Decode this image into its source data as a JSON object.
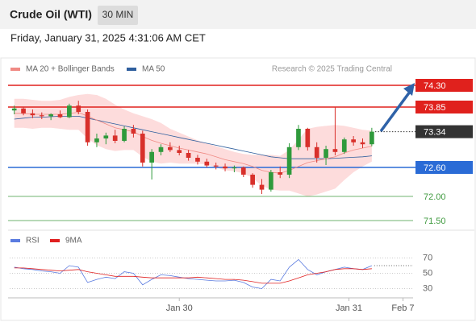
{
  "header": {
    "title": "Crude Oil (WTI)",
    "interval": "30 MIN",
    "timestamp": "Friday, January 31, 2025 4:31:06 AM CET"
  },
  "chart_data": [
    {
      "type": "candlestick",
      "legend": [
        {
          "name": "MA 20 + Bollinger Bands",
          "color": "#f08a84"
        },
        {
          "name": "MA 50",
          "color": "#2f5f9e"
        }
      ],
      "credit": "Research © 2025 Trading Central",
      "xlim": [
        -0.5,
        43.5
      ],
      "ylim": [
        71.3,
        74.5
      ],
      "xticks": [
        {
          "value": 18,
          "label": "Jan 30"
        },
        {
          "value": 36.5,
          "label": "Jan 31"
        },
        {
          "value": 42.4,
          "label": "Feb 7"
        }
      ],
      "up_color": "#2f9a3c",
      "down_color": "#d8302b",
      "band_color": "#fddcdc",
      "candles": [
        [
          73.78,
          73.88,
          73.7,
          73.82
        ],
        [
          73.82,
          73.86,
          73.68,
          73.72
        ],
        [
          73.72,
          73.8,
          73.62,
          73.68
        ],
        [
          73.68,
          73.74,
          73.6,
          73.66
        ],
        [
          73.66,
          73.72,
          73.58,
          73.7
        ],
        [
          73.7,
          73.78,
          73.62,
          73.64
        ],
        [
          73.64,
          73.92,
          73.62,
          73.88
        ],
        [
          73.88,
          73.98,
          73.7,
          73.75
        ],
        [
          73.75,
          73.8,
          73.05,
          73.12
        ],
        [
          73.12,
          73.3,
          73.02,
          73.2
        ],
        [
          73.2,
          73.32,
          73.08,
          73.26
        ],
        [
          73.26,
          73.38,
          73.1,
          73.15
        ],
        [
          73.15,
          73.45,
          73.12,
          73.4
        ],
        [
          73.4,
          73.48,
          73.22,
          73.3
        ],
        [
          73.3,
          73.36,
          72.62,
          72.7
        ],
        [
          72.7,
          72.98,
          72.35,
          72.92
        ],
        [
          72.92,
          73.08,
          72.85,
          73.02
        ],
        [
          73.02,
          73.12,
          72.92,
          72.96
        ],
        [
          72.96,
          73.05,
          72.85,
          72.9
        ],
        [
          72.9,
          72.96,
          72.74,
          72.8
        ],
        [
          72.8,
          72.86,
          72.66,
          72.72
        ],
        [
          72.72,
          72.78,
          72.6,
          72.64
        ],
        [
          72.64,
          72.7,
          72.56,
          72.62
        ],
        [
          72.62,
          72.68,
          72.52,
          72.58
        ],
        [
          72.58,
          72.64,
          72.5,
          72.6
        ],
        [
          72.6,
          72.62,
          72.4,
          72.45
        ],
        [
          72.45,
          72.48,
          72.18,
          72.24
        ],
        [
          72.24,
          72.36,
          72.05,
          72.14
        ],
        [
          72.14,
          72.55,
          72.1,
          72.5
        ],
        [
          72.5,
          72.62,
          72.38,
          72.45
        ],
        [
          72.45,
          73.1,
          72.38,
          73.02
        ],
        [
          73.02,
          73.48,
          72.96,
          73.4
        ],
        [
          73.4,
          73.42,
          72.95,
          73.02
        ],
        [
          73.02,
          73.12,
          72.7,
          72.8
        ],
        [
          72.8,
          73.05,
          72.65,
          72.98
        ],
        [
          72.98,
          73.85,
          72.85,
          72.92
        ],
        [
          72.92,
          73.22,
          72.88,
          73.18
        ],
        [
          73.18,
          73.25,
          73.05,
          73.12
        ],
        [
          73.12,
          73.2,
          73.0,
          73.08
        ],
        [
          73.08,
          73.42,
          73.04,
          73.34
        ]
      ],
      "ma20": [
        73.72,
        73.72,
        73.7,
        73.7,
        73.7,
        73.7,
        73.72,
        73.74,
        73.66,
        73.58,
        73.5,
        73.42,
        73.38,
        73.34,
        73.24,
        73.16,
        73.1,
        73.05,
        73.0,
        72.96,
        72.92,
        72.88,
        72.82,
        72.76,
        72.72,
        72.68,
        72.62,
        72.54,
        72.5,
        72.48,
        72.54,
        72.62,
        72.7,
        72.74,
        72.78,
        72.82,
        72.9,
        72.96,
        73.0,
        73.04
      ],
      "ma50": [
        73.6,
        73.62,
        73.64,
        73.64,
        73.65,
        73.66,
        73.66,
        73.66,
        73.62,
        73.58,
        73.54,
        73.5,
        73.46,
        73.42,
        73.38,
        73.34,
        73.3,
        73.26,
        73.22,
        73.18,
        73.14,
        73.1,
        73.06,
        73.02,
        72.98,
        72.94,
        72.9,
        72.86,
        72.82,
        72.8,
        72.78,
        72.78,
        72.78,
        72.78,
        72.78,
        72.79,
        72.8,
        72.81,
        72.82,
        72.84
      ],
      "bb_upper": [
        74.02,
        74.02,
        74.0,
        73.98,
        73.98,
        74.0,
        74.06,
        74.1,
        74.12,
        74.1,
        74.02,
        73.9,
        73.8,
        73.72,
        73.66,
        73.6,
        73.52,
        73.4,
        73.32,
        73.24,
        73.16,
        73.1,
        73.04,
        72.98,
        72.92,
        72.88,
        72.86,
        72.86,
        72.86,
        72.84,
        72.96,
        73.18,
        73.4,
        73.44,
        73.46,
        73.48,
        73.46,
        73.42,
        73.38,
        73.36
      ],
      "bb_lower": [
        73.42,
        73.42,
        73.4,
        73.42,
        73.42,
        73.4,
        73.38,
        73.38,
        73.2,
        73.06,
        72.98,
        72.94,
        72.96,
        72.96,
        72.82,
        72.72,
        72.68,
        72.7,
        72.68,
        72.68,
        72.68,
        72.66,
        72.6,
        72.54,
        72.52,
        72.48,
        72.38,
        72.22,
        72.14,
        72.12,
        72.12,
        72.06,
        72.0,
        72.04,
        72.1,
        72.16,
        72.34,
        72.5,
        72.62,
        72.72
      ],
      "levels": [
        {
          "value": 74.3,
          "label": "74.30",
          "color": "#e0211d",
          "boxed": true
        },
        {
          "value": 73.85,
          "label": "73.85",
          "color": "#e0211d",
          "boxed": true
        },
        {
          "value": 72.6,
          "label": "72.60",
          "color": "#2a6bd6",
          "boxed": true
        },
        {
          "value": 72,
          "label": "72.00",
          "color": "#3f9a3f",
          "boxed": false
        },
        {
          "value": 71.5,
          "label": "71.50",
          "color": "#3f9a3f",
          "boxed": false
        }
      ],
      "last": {
        "value": 73.34,
        "color": "#333333"
      }
    },
    {
      "type": "line",
      "ylim": [
        20,
        80
      ],
      "yticks": [
        70,
        50,
        30
      ],
      "series": [
        {
          "name": "RSI",
          "color": "#5a7be0",
          "values": [
            58,
            56,
            55,
            53,
            52,
            50,
            60,
            58,
            38,
            42,
            45,
            43,
            52,
            50,
            35,
            42,
            48,
            47,
            45,
            43,
            42,
            41,
            40,
            40,
            41,
            38,
            32,
            30,
            42,
            40,
            58,
            68,
            55,
            48,
            52,
            55,
            58,
            56,
            55,
            60
          ]
        },
        {
          "name": "9MA",
          "color": "#e02020",
          "values": [
            57,
            57,
            56,
            55,
            54,
            53,
            54,
            55,
            52,
            50,
            48,
            46,
            46,
            46,
            45,
            44,
            44,
            44,
            44,
            44,
            45,
            44,
            43,
            42,
            42,
            41,
            39,
            37,
            37,
            37,
            40,
            44,
            48,
            50,
            52,
            55,
            56,
            56,
            55,
            56
          ]
        }
      ]
    }
  ]
}
